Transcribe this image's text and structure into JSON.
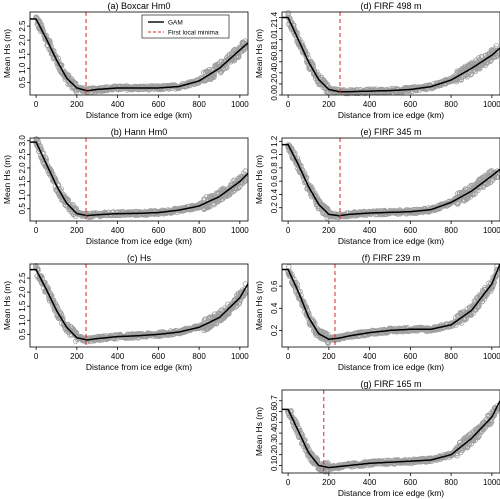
{
  "chart_data": [
    {
      "type": "scatter",
      "title": "(a) Boxcar Hm0",
      "xlabel": "Distance from ice edge (km)",
      "ylabel": "Mean Hs (m)",
      "xlim": [
        -30,
        1040
      ],
      "ylim": [
        0.05,
        3.0
      ],
      "xticks": [
        0,
        200,
        400,
        600,
        800,
        1000
      ],
      "yticks": [
        0.5,
        1.0,
        1.5,
        2.0,
        2.5
      ],
      "minimum_km": 245,
      "legend": [
        "GAM",
        "First local minima"
      ],
      "legend_placement": "top-center",
      "gam": [
        [
          0,
          2.75
        ],
        [
          50,
          2.05
        ],
        [
          100,
          1.3
        ],
        [
          150,
          0.65
        ],
        [
          200,
          0.3
        ],
        [
          250,
          0.2
        ],
        [
          300,
          0.25
        ],
        [
          400,
          0.3
        ],
        [
          500,
          0.3
        ],
        [
          600,
          0.3
        ],
        [
          700,
          0.35
        ],
        [
          800,
          0.55
        ],
        [
          900,
          1.0
        ],
        [
          1000,
          1.65
        ],
        [
          1040,
          1.9
        ]
      ]
    },
    {
      "type": "scatter",
      "title": "(b) Hann Hm0",
      "xlabel": "Distance from ice edge (km)",
      "ylabel": "Mean Hs (m)",
      "xlim": [
        -30,
        1040
      ],
      "ylim": [
        0.05,
        3.1
      ],
      "xticks": [
        0,
        200,
        400,
        600,
        800,
        1000
      ],
      "yticks": [
        0.5,
        1.0,
        1.5,
        2.0,
        2.5,
        3.0
      ],
      "minimum_km": 245,
      "gam": [
        [
          0,
          2.95
        ],
        [
          50,
          2.15
        ],
        [
          100,
          1.35
        ],
        [
          150,
          0.7
        ],
        [
          200,
          0.32
        ],
        [
          250,
          0.25
        ],
        [
          300,
          0.28
        ],
        [
          400,
          0.32
        ],
        [
          500,
          0.33
        ],
        [
          600,
          0.36
        ],
        [
          700,
          0.45
        ],
        [
          800,
          0.6
        ],
        [
          900,
          0.95
        ],
        [
          1000,
          1.5
        ],
        [
          1040,
          1.8
        ]
      ]
    },
    {
      "type": "scatter",
      "title": "(c) Hs",
      "xlabel": "Distance from ice edge (km)",
      "ylabel": "Mean Hs (m)",
      "xlim": [
        -30,
        1040
      ],
      "ylim": [
        0.05,
        3.0
      ],
      "xticks": [
        0,
        200,
        400,
        600,
        800,
        1000
      ],
      "yticks": [
        0.5,
        1.0,
        1.5,
        2.0,
        2.5
      ],
      "minimum_km": 245,
      "gam": [
        [
          0,
          2.8
        ],
        [
          50,
          2.1
        ],
        [
          100,
          1.35
        ],
        [
          150,
          0.75
        ],
        [
          200,
          0.38
        ],
        [
          250,
          0.3
        ],
        [
          300,
          0.35
        ],
        [
          400,
          0.42
        ],
        [
          500,
          0.45
        ],
        [
          600,
          0.5
        ],
        [
          700,
          0.58
        ],
        [
          800,
          0.75
        ],
        [
          900,
          1.1
        ],
        [
          1000,
          1.8
        ],
        [
          1040,
          2.3
        ]
      ]
    },
    {
      "type": "scatter",
      "title": "(d) FIRF 498 m",
      "xlabel": "Distance from ice edge (km)",
      "ylabel": "Mean Hs (m)",
      "xlim": [
        -30,
        1040
      ],
      "ylim": [
        0.0,
        1.5
      ],
      "xticks": [
        0,
        200,
        400,
        600,
        800,
        1000
      ],
      "yticks": [
        0.0,
        0.2,
        0.4,
        0.6,
        0.8,
        1.0,
        1.2,
        1.4
      ],
      "minimum_km": 255,
      "gam": [
        [
          0,
          1.4
        ],
        [
          50,
          1.0
        ],
        [
          100,
          0.6
        ],
        [
          150,
          0.28
        ],
        [
          200,
          0.1
        ],
        [
          250,
          0.06
        ],
        [
          300,
          0.06
        ],
        [
          400,
          0.07
        ],
        [
          500,
          0.08
        ],
        [
          600,
          0.1
        ],
        [
          700,
          0.15
        ],
        [
          800,
          0.27
        ],
        [
          900,
          0.48
        ],
        [
          1000,
          0.72
        ],
        [
          1040,
          0.85
        ]
      ]
    },
    {
      "type": "scatter",
      "title": "(e) FIRF 345 m",
      "xlabel": "Distance from ice edge (km)",
      "ylabel": "Mean Hs (m)",
      "xlim": [
        -30,
        1040
      ],
      "ylim": [
        0.0,
        1.25
      ],
      "xticks": [
        0,
        200,
        400,
        600,
        800,
        1000
      ],
      "yticks": [
        0.2,
        0.4,
        0.6,
        0.8,
        1.0,
        1.2
      ],
      "minimum_km": 255,
      "gam": [
        [
          0,
          1.15
        ],
        [
          50,
          0.85
        ],
        [
          100,
          0.52
        ],
        [
          150,
          0.25
        ],
        [
          200,
          0.1
        ],
        [
          250,
          0.08
        ],
        [
          300,
          0.1
        ],
        [
          400,
          0.12
        ],
        [
          500,
          0.13
        ],
        [
          600,
          0.14
        ],
        [
          700,
          0.17
        ],
        [
          800,
          0.28
        ],
        [
          900,
          0.45
        ],
        [
          1000,
          0.68
        ],
        [
          1040,
          0.78
        ]
      ]
    },
    {
      "type": "scatter",
      "title": "(f) FIRF 239 m",
      "xlabel": "Distance from ice edge (km)",
      "ylabel": "Mean Hs (m)",
      "xlim": [
        -30,
        1040
      ],
      "ylim": [
        0.05,
        0.8
      ],
      "xticks": [
        0,
        200,
        400,
        600,
        800,
        1000
      ],
      "yticks": [
        0.2,
        0.4,
        0.6
      ],
      "minimum_km": 230,
      "gam": [
        [
          0,
          0.75
        ],
        [
          50,
          0.55
        ],
        [
          100,
          0.32
        ],
        [
          150,
          0.17
        ],
        [
          200,
          0.12
        ],
        [
          250,
          0.13
        ],
        [
          300,
          0.15
        ],
        [
          400,
          0.18
        ],
        [
          500,
          0.2
        ],
        [
          600,
          0.21
        ],
        [
          700,
          0.21
        ],
        [
          800,
          0.25
        ],
        [
          900,
          0.38
        ],
        [
          1000,
          0.62
        ],
        [
          1040,
          0.8
        ]
      ]
    },
    {
      "type": "scatter",
      "title": "(g) FIRF 165 m",
      "xlabel": "Distance from ice edge (km)",
      "ylabel": "Mean Hs (m)",
      "xlim": [
        -30,
        1040
      ],
      "ylim": [
        0.03,
        0.8
      ],
      "xticks": [
        0,
        200,
        400,
        600,
        800,
        1000
      ],
      "yticks": [
        0.1,
        0.2,
        0.3,
        0.4,
        0.5,
        0.6,
        0.7
      ],
      "minimum_km": 175,
      "gam": [
        [
          0,
          0.62
        ],
        [
          50,
          0.42
        ],
        [
          100,
          0.22
        ],
        [
          150,
          0.1
        ],
        [
          200,
          0.08
        ],
        [
          250,
          0.09
        ],
        [
          300,
          0.1
        ],
        [
          400,
          0.12
        ],
        [
          500,
          0.13
        ],
        [
          600,
          0.14
        ],
        [
          700,
          0.15
        ],
        [
          800,
          0.2
        ],
        [
          900,
          0.35
        ],
        [
          1000,
          0.55
        ],
        [
          1040,
          0.7
        ]
      ]
    }
  ]
}
